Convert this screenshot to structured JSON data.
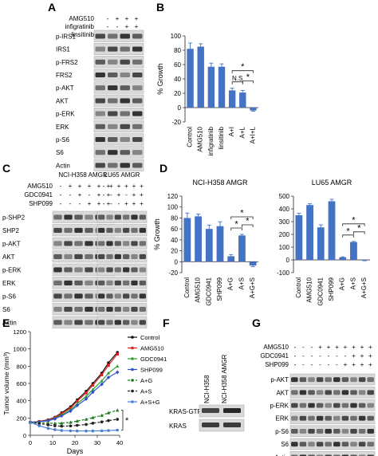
{
  "panel_letters": {
    "a": "A",
    "b": "B",
    "c": "C",
    "d": "D",
    "e": "E",
    "f": "F",
    "g": "G"
  },
  "blot_a": {
    "conditions": [
      {
        "label": "AMG510",
        "signs": [
          "-",
          "+",
          "+",
          "+"
        ]
      },
      {
        "label": "infigratinib",
        "signs": [
          "-",
          "-",
          "+",
          "+"
        ]
      },
      {
        "label": "linsitinib",
        "signs": [
          "-",
          "-",
          "-",
          "+"
        ]
      }
    ],
    "rows": [
      "p-IRS1",
      "IRS1",
      "p-FRS2",
      "FRS2",
      "p-AKT",
      "AKT",
      "p-ERK",
      "ERK",
      "p-S6",
      "S6",
      "Actin"
    ]
  },
  "blot_c": {
    "cell_lines": [
      "NCI-H358 AMGR",
      "LU65 AMGR"
    ],
    "conditions": [
      {
        "label": "AMG510",
        "signs": [
          "-",
          "+",
          "+",
          "+",
          "+",
          "+"
        ]
      },
      {
        "label": "GDC0941",
        "signs": [
          "-",
          "-",
          "+",
          "-",
          "+",
          "+"
        ]
      },
      {
        "label": "SHP099",
        "signs": [
          "-",
          "-",
          "-",
          "+",
          "+",
          "+"
        ]
      }
    ],
    "rows": [
      "p-SHP2",
      "SHP2",
      "p-AKT",
      "AKT",
      "p-ERK",
      "ERK",
      "p-S6",
      "S6",
      "Actin"
    ]
  },
  "blot_f": {
    "columns": [
      "NCI-H358",
      "NCI-H358 AMGR"
    ],
    "rows": [
      "KRAS-GTP",
      "KRAS"
    ]
  },
  "blot_g": {
    "conditions": [
      {
        "label": "AMG510",
        "signs": [
          "-",
          "-",
          "-",
          "+",
          "+",
          "+",
          "+",
          "+",
          "+",
          "+"
        ]
      },
      {
        "label": "GDC0941",
        "signs": [
          "-",
          "-",
          "-",
          "-",
          "-",
          "-",
          "-",
          "+",
          "+",
          "+"
        ]
      },
      {
        "label": "SHP099",
        "signs": [
          "-",
          "-",
          "-",
          "-",
          "-",
          "-",
          "+",
          "+",
          "+",
          "+"
        ]
      }
    ],
    "rows": [
      "p-AKT",
      "AKT",
      "p-ERK",
      "ERK",
      "p-S6",
      "S6",
      "Actin"
    ]
  },
  "colors": {
    "bar": "#4472c4",
    "blot_bg": "#d9d9d9",
    "band": "#1e1e1e"
  },
  "chart_data": [
    {
      "panel": "B",
      "type": "bar",
      "categories": [
        "Control",
        "AMG510",
        "infigratinib",
        "linsitinib",
        "A+I",
        "A+L",
        "A+I+L"
      ],
      "values": [
        82,
        85,
        57,
        57,
        24,
        21,
        -4
      ],
      "errors": [
        8,
        4,
        5,
        4,
        3,
        3,
        1
      ],
      "ylabel": "% Growth",
      "ylim": [
        -20,
        100
      ],
      "yticks": [
        -20,
        0,
        20,
        40,
        60,
        80,
        100
      ],
      "significance": [
        {
          "from": "A+I",
          "to": "A+L",
          "text": "N.S"
        },
        {
          "from": "A+L",
          "to": "A+I+L",
          "text": "*"
        },
        {
          "from": "A+I",
          "to": "A+I+L",
          "text": "*"
        }
      ]
    },
    {
      "panel": "D",
      "type": "bar",
      "title": "NCI-H358 AMGR",
      "categories": [
        "Control",
        "AMG510",
        "GDC0941",
        "SHP099",
        "A+G",
        "A+S",
        "A+G+S"
      ],
      "values": [
        80,
        83,
        60,
        65,
        10,
        48,
        -7
      ],
      "errors": [
        9,
        4,
        7,
        8,
        3,
        2,
        2
      ],
      "ylabel": "% Growth",
      "ylim": [
        -20,
        120
      ],
      "yticks": [
        -20,
        0,
        20,
        40,
        60,
        80,
        100,
        120
      ],
      "significance": [
        {
          "from": "A+G",
          "to": "A+S",
          "text": "*"
        },
        {
          "from": "A+S",
          "to": "A+G+S",
          "text": "*"
        },
        {
          "from": "A+G",
          "to": "A+G+S",
          "text": "*"
        }
      ]
    },
    {
      "panel": "D",
      "type": "bar",
      "title": "LU65 AMGR",
      "categories": [
        "Control",
        "AMG510",
        "GDC0941",
        "SHP099",
        "A+G",
        "A+S",
        "A+G+S"
      ],
      "values": [
        350,
        430,
        255,
        460,
        20,
        140,
        -5
      ],
      "errors": [
        15,
        10,
        20,
        15,
        4,
        5,
        2
      ],
      "ylabel": "",
      "ylim": [
        -100,
        500
      ],
      "yticks": [
        -100,
        0,
        100,
        200,
        300,
        400,
        500
      ],
      "significance": [
        {
          "from": "A+G",
          "to": "A+S",
          "text": "*"
        },
        {
          "from": "A+S",
          "to": "A+G+S",
          "text": "*"
        },
        {
          "from": "A+G",
          "to": "A+G+S",
          "text": "*"
        }
      ]
    },
    {
      "panel": "E",
      "type": "line",
      "xlabel": "Days",
      "ylabel": "Tumor volume (mm³)",
      "xlim": [
        0,
        40
      ],
      "xticks": [
        0,
        10,
        20,
        30,
        40
      ],
      "ylim": [
        0,
        1200
      ],
      "yticks": [
        0,
        200,
        400,
        600,
        800,
        1000,
        1200
      ],
      "x": [
        0,
        4,
        8,
        11,
        14,
        18,
        21,
        25,
        28,
        32,
        35,
        39
      ],
      "series": [
        {
          "name": "Control",
          "color": "#111111",
          "dashed": false,
          "marker": "circle",
          "values": [
            150,
            160,
            180,
            210,
            260,
            330,
            410,
            510,
            600,
            720,
            840,
            960
          ]
        },
        {
          "name": "AMG510",
          "color": "#e02020",
          "dashed": false,
          "marker": "square",
          "values": [
            150,
            158,
            175,
            205,
            250,
            315,
            395,
            490,
            580,
            700,
            810,
            940
          ]
        },
        {
          "name": "GDC0941",
          "color": "#2ca02c",
          "dashed": false,
          "marker": "triangle",
          "values": [
            150,
            155,
            170,
            195,
            235,
            295,
            365,
            450,
            530,
            630,
            720,
            800
          ]
        },
        {
          "name": "SHP099",
          "color": "#3050d0",
          "dashed": false,
          "marker": "diamond",
          "values": [
            150,
            155,
            168,
            190,
            225,
            280,
            345,
            420,
            500,
            590,
            670,
            730
          ]
        },
        {
          "name": "A+G",
          "color": "#1e7a1e",
          "dashed": true,
          "marker": "triangle",
          "values": [
            150,
            145,
            140,
            138,
            140,
            150,
            165,
            185,
            205,
            230,
            260,
            290
          ]
        },
        {
          "name": "A+S",
          "color": "#222222",
          "dashed": true,
          "marker": "circle",
          "values": [
            150,
            135,
            120,
            110,
            105,
            108,
            115,
            125,
            140,
            155,
            170,
            185
          ]
        },
        {
          "name": "A+S+G",
          "color": "#4a7fd4",
          "dashed": false,
          "marker": "circle",
          "values": [
            150,
            110,
            80,
            65,
            55,
            52,
            50,
            50,
            50,
            52,
            55,
            60
          ]
        }
      ],
      "annotation": "*"
    }
  ]
}
